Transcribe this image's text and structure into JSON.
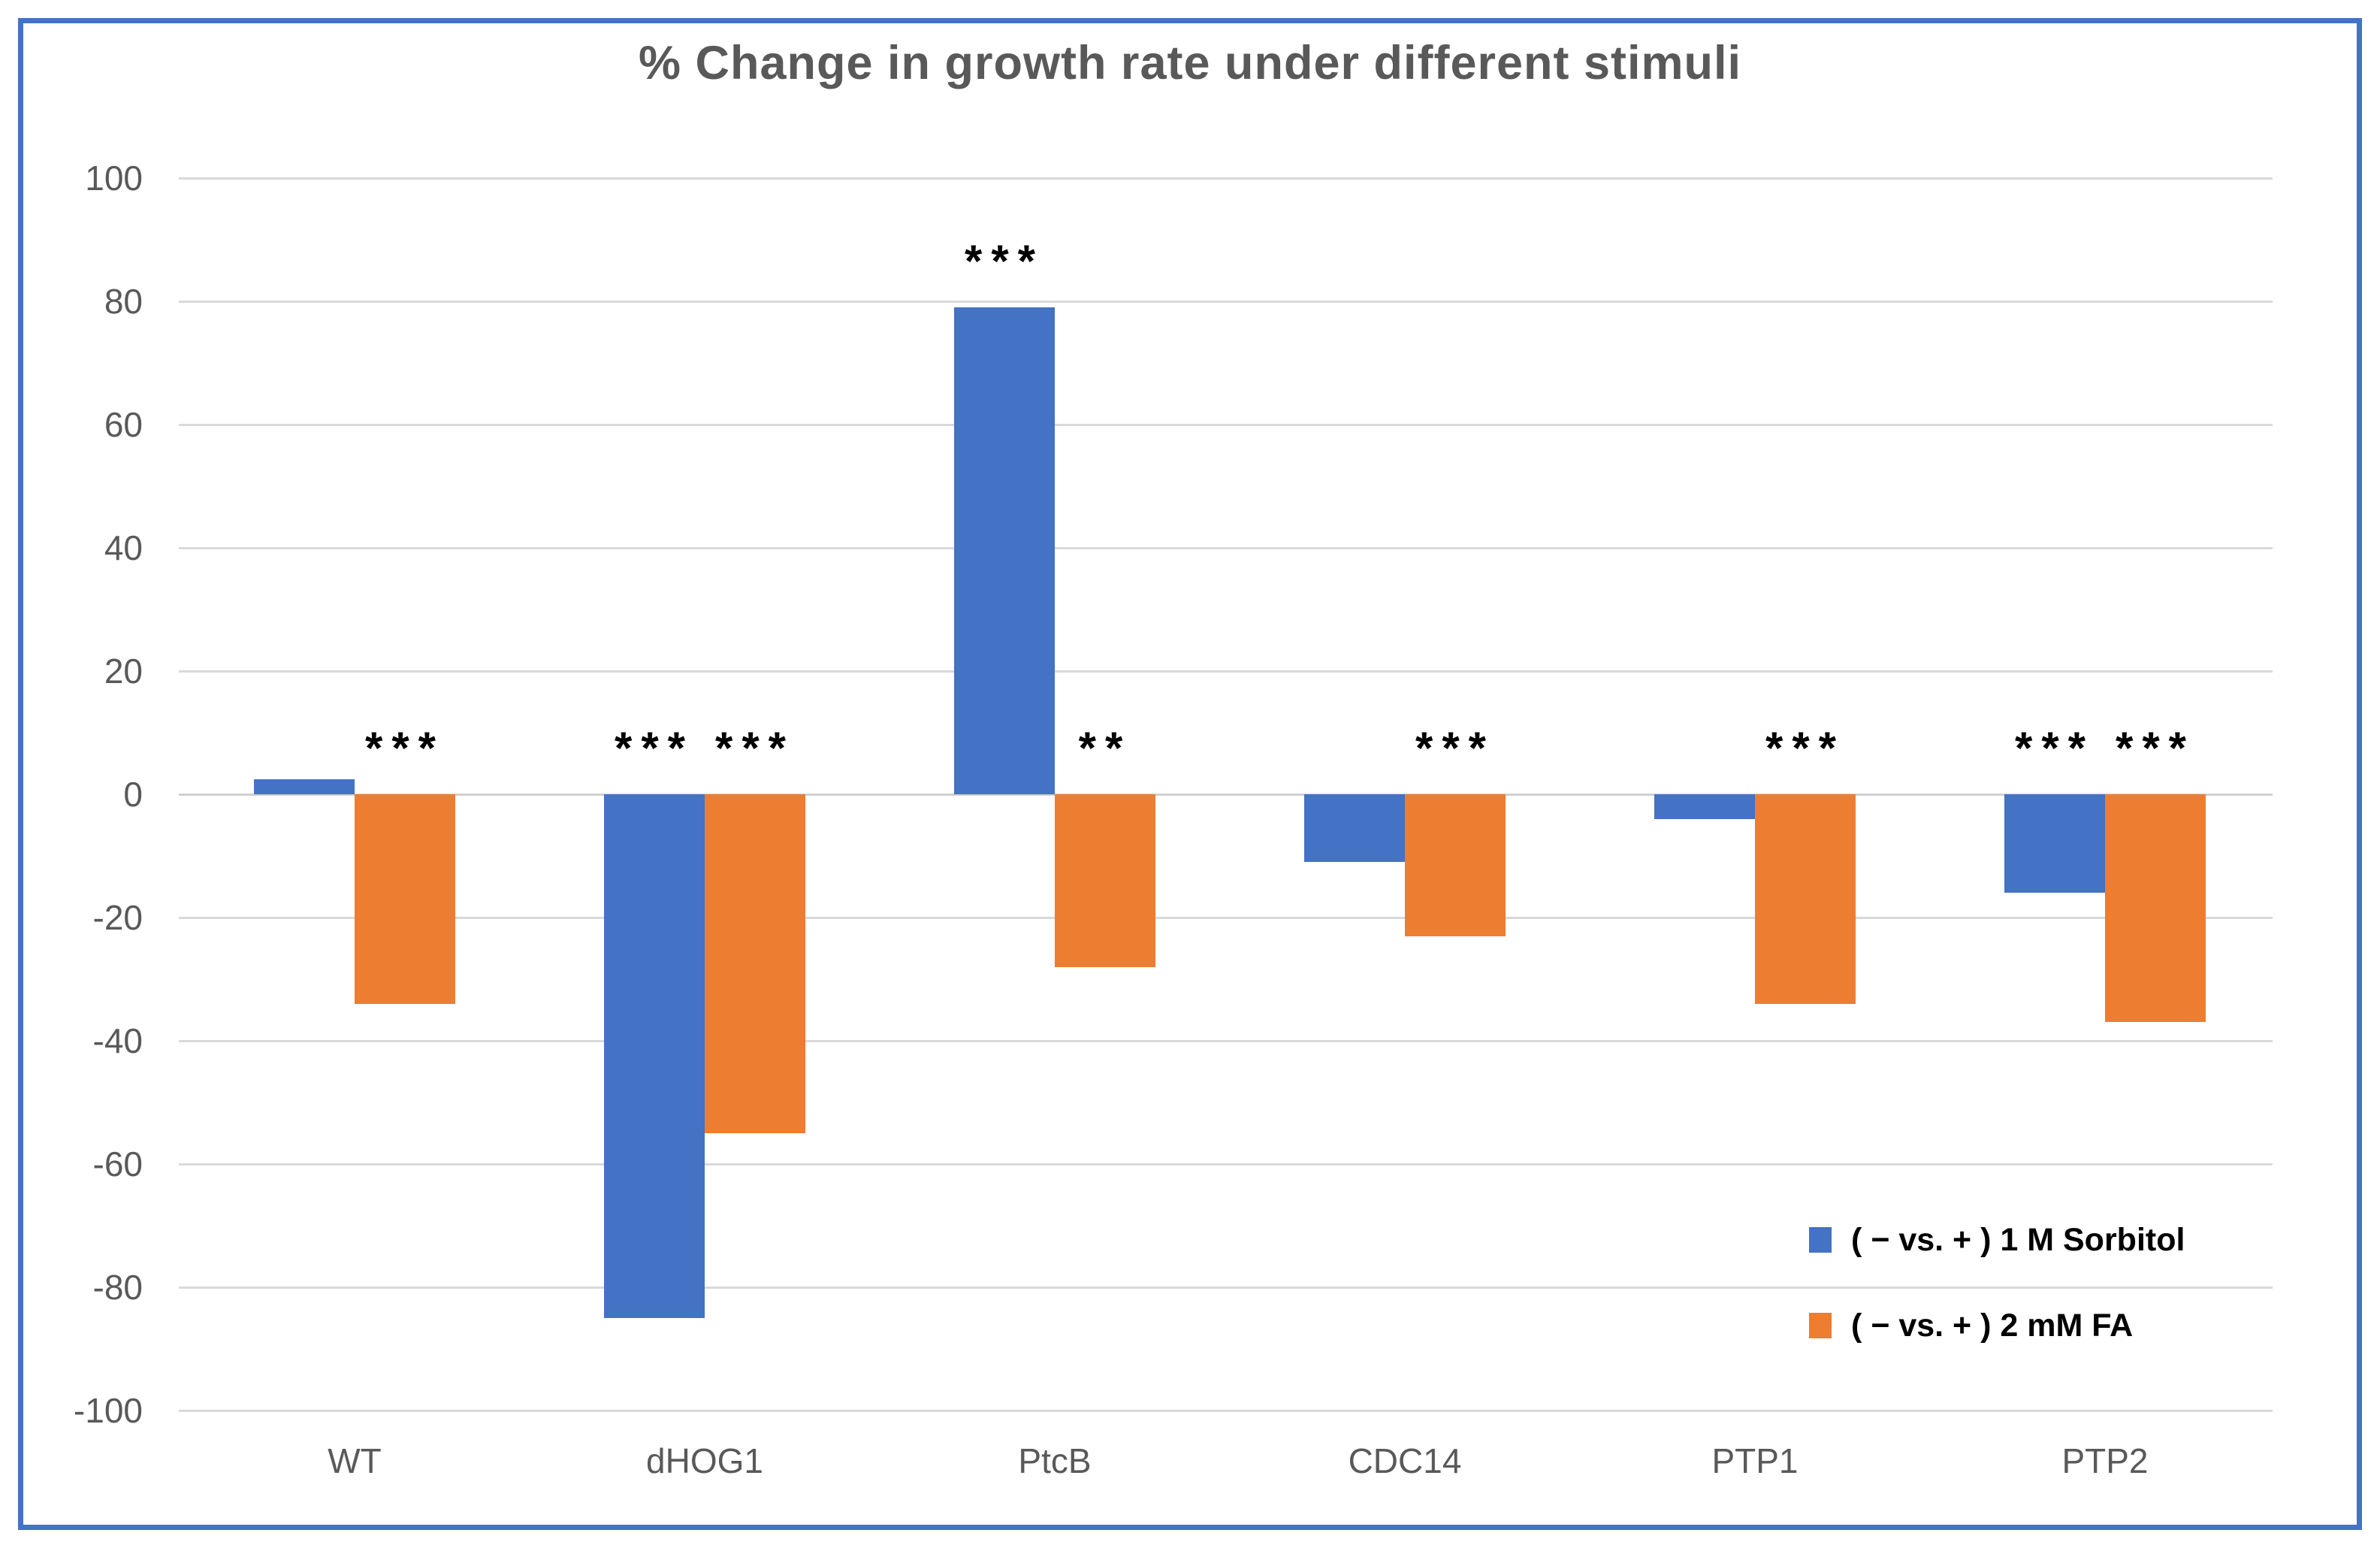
{
  "chart_data": {
    "type": "bar",
    "title": "% Change in growth rate under different stimuli",
    "categories": [
      "WT",
      "dHOG1",
      "PtcB",
      "CDC14",
      "PTP1",
      "PTP2"
    ],
    "series": [
      {
        "name": "( − vs. + ) 1 M Sorbitol",
        "color": "#4472C4",
        "values": [
          2.5,
          -85,
          79,
          -11,
          -4,
          -16
        ],
        "significance": [
          "",
          "***",
          "***",
          "",
          "",
          "***"
        ]
      },
      {
        "name": "( − vs. + ) 2 mM FA",
        "color": "#ED7D31",
        "values": [
          -34,
          -55,
          -28,
          -23,
          -34,
          -37
        ],
        "significance": [
          "***",
          "***",
          "**",
          "***",
          "***",
          "***"
        ]
      }
    ],
    "xlabel": "",
    "ylabel": "",
    "ylim": [
      -100,
      100
    ],
    "yticks": [
      100,
      80,
      60,
      40,
      20,
      0,
      -20,
      -40,
      -60,
      -80,
      -100
    ],
    "grid": true,
    "legend_position": "inside-bottom-right"
  },
  "styles": {
    "frame_border_color": "#4472C4",
    "title_color": "#595959",
    "axis_label_color": "#595959",
    "gridline_color": "#D9D9D9",
    "zero_line_color": "#D0D0D0",
    "annotation_color": "#000000",
    "background_color": "#FFFFFF"
  }
}
